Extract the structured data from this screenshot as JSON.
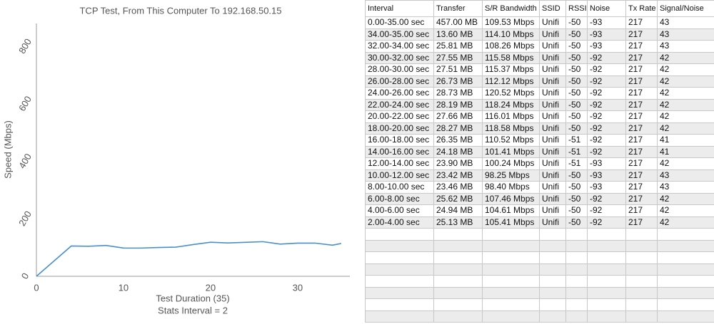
{
  "chart_data": {
    "type": "line",
    "title": "TCP Test,  From This Computer To 192.168.50.15",
    "x_label": "Test Duration (35)",
    "x_label_2": "Stats Interval = 2",
    "y_label": "Speed (Mbps)",
    "x": [
      0,
      4,
      6,
      8,
      10,
      12,
      14,
      16,
      18,
      20,
      22,
      24,
      26,
      28,
      30,
      32,
      34,
      35
    ],
    "values": [
      0,
      105.41,
      104.61,
      107.46,
      98.4,
      98.25,
      100.24,
      101.41,
      110.52,
      118.58,
      116.01,
      118.24,
      120.52,
      112.12,
      115.37,
      115.58,
      108.26,
      114.1
    ],
    "color": "#4a90c8",
    "xlim": [
      0,
      36
    ],
    "xticks": [
      0,
      10,
      20,
      30
    ],
    "ylim": [
      0,
      880
    ],
    "yticks": [
      0,
      200,
      400,
      600,
      800
    ]
  },
  "table": {
    "columns": [
      "Interval",
      "Transfer",
      "S/R Bandwidth",
      "SSID",
      "RSSI",
      "Noise",
      "Tx Rate",
      "Signal/Noise"
    ],
    "rows": [
      [
        "0.00-35.00 sec",
        "457.00 MB",
        "109.53 Mbps",
        "Unifi",
        "-50",
        "-93",
        "217",
        "43"
      ],
      [
        "34.00-35.00 sec",
        "13.60 MB",
        "114.10 Mbps",
        "Unifi",
        "-50",
        "-93",
        "217",
        "43"
      ],
      [
        "32.00-34.00 sec",
        "25.81 MB",
        "108.26 Mbps",
        "Unifi",
        "-50",
        "-93",
        "217",
        "43"
      ],
      [
        "30.00-32.00 sec",
        "27.55 MB",
        "115.58 Mbps",
        "Unifi",
        "-50",
        "-92",
        "217",
        "42"
      ],
      [
        "28.00-30.00 sec",
        "27.51 MB",
        "115.37 Mbps",
        "Unifi",
        "-50",
        "-92",
        "217",
        "42"
      ],
      [
        "26.00-28.00 sec",
        "26.73 MB",
        "112.12 Mbps",
        "Unifi",
        "-50",
        "-92",
        "217",
        "42"
      ],
      [
        "24.00-26.00 sec",
        "28.73 MB",
        "120.52 Mbps",
        "Unifi",
        "-50",
        "-92",
        "217",
        "42"
      ],
      [
        "22.00-24.00 sec",
        "28.19 MB",
        "118.24 Mbps",
        "Unifi",
        "-50",
        "-92",
        "217",
        "42"
      ],
      [
        "20.00-22.00 sec",
        "27.66 MB",
        "116.01 Mbps",
        "Unifi",
        "-50",
        "-92",
        "217",
        "42"
      ],
      [
        "18.00-20.00 sec",
        "28.27 MB",
        "118.58 Mbps",
        "Unifi",
        "-50",
        "-92",
        "217",
        "42"
      ],
      [
        "16.00-18.00 sec",
        "26.35 MB",
        "110.52 Mbps",
        "Unifi",
        "-51",
        "-92",
        "217",
        "41"
      ],
      [
        "14.00-16.00 sec",
        "24.18 MB",
        "101.41 Mbps",
        "Unifi",
        "-51",
        "-92",
        "217",
        "41"
      ],
      [
        "12.00-14.00 sec",
        "23.90 MB",
        "100.24 Mbps",
        "Unifi",
        "-51",
        "-93",
        "217",
        "42"
      ],
      [
        "10.00-12.00 sec",
        "23.42 MB",
        "98.25 Mbps",
        "Unifi",
        "-50",
        "-93",
        "217",
        "43"
      ],
      [
        "8.00-10.00 sec",
        "23.46 MB",
        "98.40 Mbps",
        "Unifi",
        "-50",
        "-93",
        "217",
        "43"
      ],
      [
        "6.00-8.00 sec",
        "25.62 MB",
        "107.46 Mbps",
        "Unifi",
        "-50",
        "-92",
        "217",
        "42"
      ],
      [
        "4.00-6.00 sec",
        "24.94 MB",
        "104.61 Mbps",
        "Unifi",
        "-50",
        "-92",
        "217",
        "42"
      ],
      [
        "2.00-4.00 sec",
        "25.13 MB",
        "105.41 Mbps",
        "Unifi",
        "-50",
        "-92",
        "217",
        "42"
      ]
    ]
  }
}
